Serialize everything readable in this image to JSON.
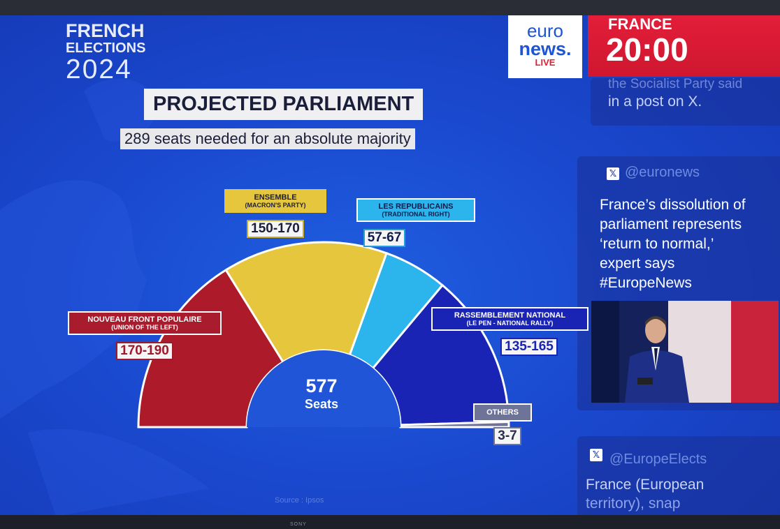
{
  "header": {
    "line1": "FRENCH",
    "line2": "ELECTIONS",
    "line3": "2024",
    "title": "PROJECTED PARLIAMENT",
    "subtitle": "289 seats needed for an absolute majority"
  },
  "logo": {
    "line1": "euro",
    "line2": "news.",
    "line3": "LIVE"
  },
  "clock": {
    "country": "FRANCE",
    "time": "20:00"
  },
  "sidebar": {
    "post1": {
      "faded": "the Socialist Party said",
      "text": "in a post on X."
    },
    "post2": {
      "handle": "@euronews",
      "lines": [
        "France’s dissolution of",
        "parliament represents",
        "‘return to normal,’",
        "expert says",
        "#EuropeNews"
      ]
    },
    "post3": {
      "handle": "@EuropeElects",
      "lines": [
        "France (European",
        "territory), snap"
      ]
    }
  },
  "chart_data": {
    "type": "pie",
    "layout": "hemicycle",
    "total": 577,
    "total_label": "Seats",
    "source": "Source : Ipsos",
    "series": [
      {
        "name": "NOUVEAU FRONT POPULAIRE",
        "sub": "(UNION OF THE LEFT)",
        "range": "170-190",
        "low": 170,
        "high": 190,
        "value": 180,
        "color": "#ad1a2a"
      },
      {
        "name": "ENSEMBLE",
        "sub": "(MACRON'S PARTY)",
        "range": "150-170",
        "low": 150,
        "high": 170,
        "value": 160,
        "color": "#e6c63c"
      },
      {
        "name": "LES REPUBLICAINS",
        "sub": "(TRADITIONAL RIGHT)",
        "range": "57-67",
        "low": 57,
        "high": 67,
        "value": 62,
        "color": "#2cb4ec"
      },
      {
        "name": "RASSEMBLEMENT NATIONAL",
        "sub": "(LE PEN - NATIONAL RALLY)",
        "range": "135-165",
        "low": 135,
        "high": 165,
        "value": 150,
        "color": "#1a24b4"
      },
      {
        "name": "OTHERS",
        "sub": "",
        "range": "3-7",
        "low": 3,
        "high": 7,
        "value": 5,
        "color": "#6e7398"
      }
    ]
  },
  "colors": {
    "background": "#1a49cf",
    "accent_red": "#e21e33",
    "label_box": "#a91c2e"
  }
}
